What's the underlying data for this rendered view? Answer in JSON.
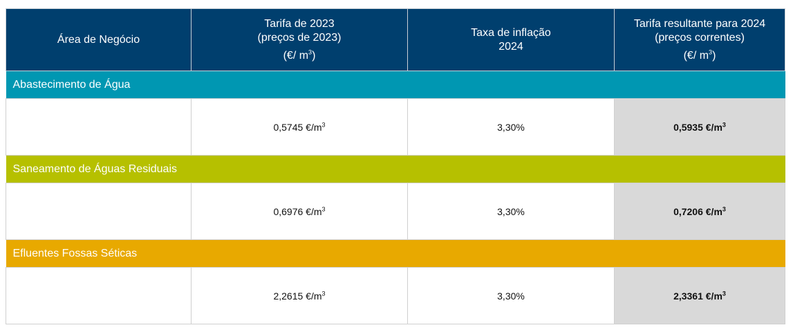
{
  "header": {
    "area": "Área de Negócio",
    "tariff_2023": [
      "Tarifa de 2023",
      "(preços de 2023)",
      "(€/ m",
      "3",
      ")"
    ],
    "inflation": [
      "Taxa de inflação",
      "2024"
    ],
    "tariff_2024": [
      "Tarifa resultante para 2024",
      "(preços correntes)",
      "(€/ m",
      "3",
      ")"
    ]
  },
  "rows": [
    {
      "section": "Abastecimento de Água",
      "tariff_2023": "0,5745 €/m",
      "inflation": "3,30%",
      "tariff_2024": "0,5935 €/m",
      "unit_exp": "3",
      "color": "#0097b2"
    },
    {
      "section": "Saneamento de Águas Residuais",
      "tariff_2023": "0,6976 €/m",
      "inflation": "3,30%",
      "tariff_2024": "0,7206 €/m",
      "unit_exp": "3",
      "color": "#b6c000"
    },
    {
      "section": "Efluentes Fossas Séticas",
      "tariff_2023": "2,2615 €/m",
      "inflation": "3,30%",
      "tariff_2024": "2,3361 €/m",
      "unit_exp": "3",
      "color": "#e8a900"
    }
  ]
}
